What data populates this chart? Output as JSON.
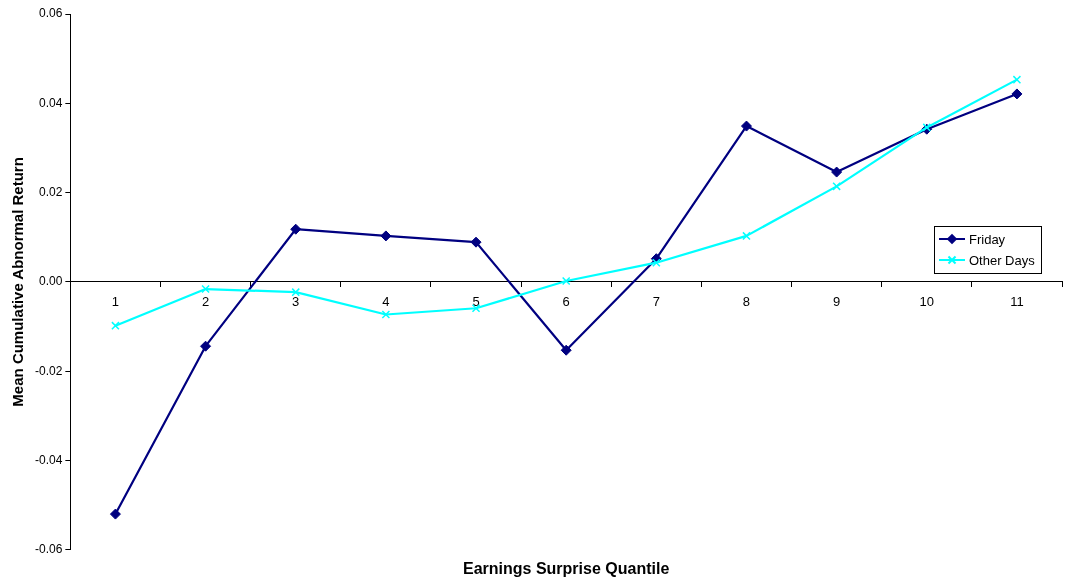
{
  "chart_data": {
    "type": "line",
    "xlabel": "Earnings Surprise Quantile",
    "ylabel": "Mean Cumulative Abnormal Return",
    "categories": [
      "1",
      "2",
      "3",
      "4",
      "5",
      "6",
      "7",
      "8",
      "9",
      "10",
      "11"
    ],
    "series": [
      {
        "name": "Friday",
        "color": "#000080",
        "marker": "diamond",
        "values": [
          -0.052,
          -0.0144,
          0.0118,
          0.0103,
          0.0089,
          -0.0153,
          0.0052,
          0.0349,
          0.0246,
          0.0342,
          0.0421
        ]
      },
      {
        "name": "Other Days",
        "color": "#00ffff",
        "marker": "cross",
        "values": [
          -0.0098,
          -0.0016,
          -0.0023,
          -0.0073,
          -0.0059,
          0.0002,
          0.0043,
          0.0103,
          0.0214,
          0.0346,
          0.0453
        ]
      }
    ],
    "ylim": [
      -0.06,
      0.06
    ],
    "yticks": [
      -0.06,
      -0.04,
      -0.02,
      {
        "value": 0,
        "label": "0.00"
      },
      0.02,
      0.04,
      0.06
    ],
    "grid": false,
    "legend": "right",
    "line_style": "solid"
  }
}
